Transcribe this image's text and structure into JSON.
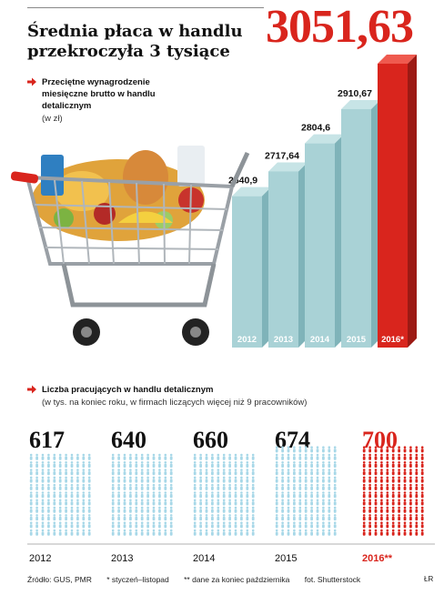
{
  "title": "Średnia płaca w handlu przekroczyła 3 tysiące",
  "headline_value": "3051,63",
  "wages_section": {
    "caption": "Przeciętne wynagrodzenie miesięczne brutto w handlu detalicznym",
    "unit": "(w zł)"
  },
  "employment_section": {
    "caption": "Liczba pracujących w handlu detalicznym",
    "subtitle": "(w tys. na koniec roku, w firmach liczących więcej niż 9 pracowników)"
  },
  "colors": {
    "accent": "#d9251d",
    "bar": "#a9d2d6",
    "people": "#a8d8e8"
  },
  "chart_data": [
    {
      "type": "bar",
      "categories": [
        "2012",
        "2013",
        "2014",
        "2015",
        "2016*"
      ],
      "values": [
        2640.9,
        2717.64,
        2804.6,
        2910.67,
        3051.63
      ],
      "value_labels": [
        "2640,9",
        "2717,64",
        "2804,6",
        "2910,67",
        "3051,63"
      ],
      "title": "Przeciętne wynagrodzenie miesięczne brutto w handlu detalicznym",
      "ylabel": "(w zł)",
      "highlight": "2016*"
    },
    {
      "type": "bar",
      "categories": [
        "2012",
        "2013",
        "2014",
        "2015",
        "2016**"
      ],
      "values": [
        617,
        640,
        660,
        674,
        700
      ],
      "value_labels": [
        "617",
        "640",
        "660",
        "674",
        "700"
      ],
      "title": "Liczba pracujących w handlu detalicznym",
      "ylabel": "(w tys. na koniec roku, w firmach liczących więcej niż 9 pracowników)",
      "highlight": "2016**"
    }
  ],
  "footer": {
    "source": "Źródło: GUS, PMR",
    "note1": "* styczeń–listopad",
    "note2": "** dane za koniec października",
    "photo": "fot. Shutterstock",
    "initials": "ŁR"
  }
}
